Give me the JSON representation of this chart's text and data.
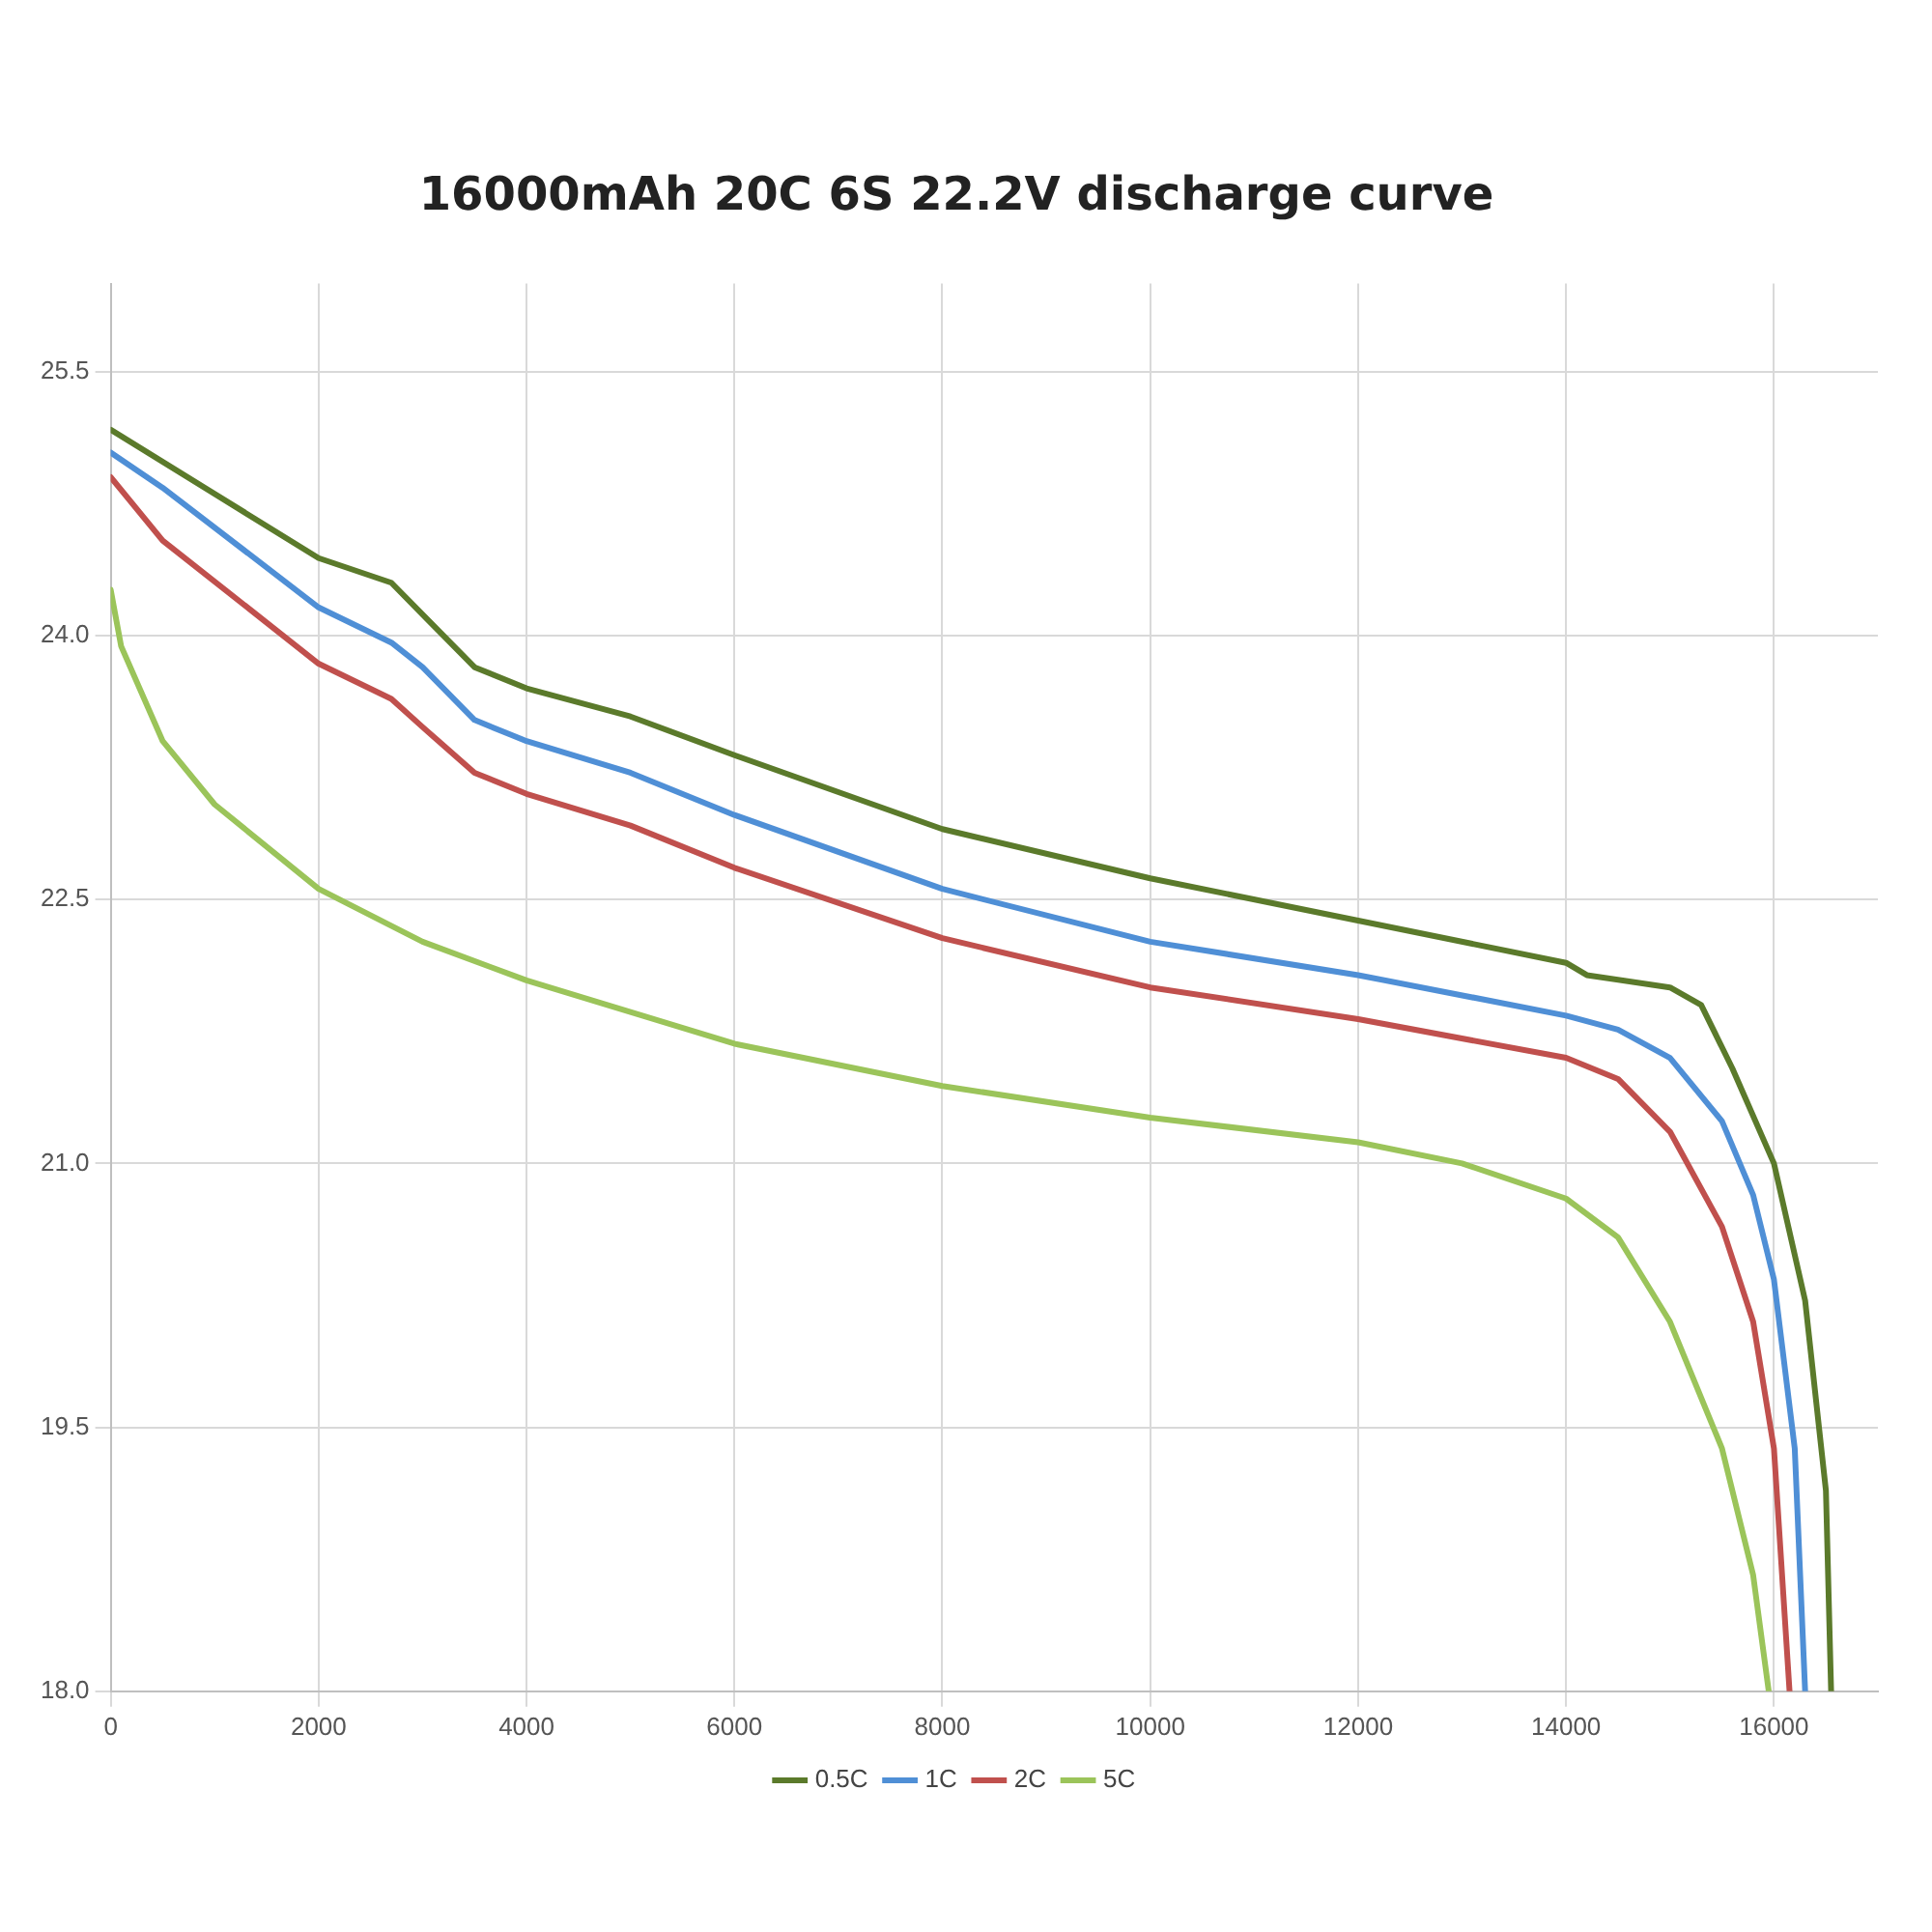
{
  "chart_data": {
    "type": "line",
    "title": "16000mAh 20C 6S 22.2V discharge curve",
    "xlim": [
      0,
      17000
    ],
    "xticks": [
      0,
      2000,
      4000,
      6000,
      8000,
      10000,
      12000,
      14000,
      16000
    ],
    "ylim": [
      18,
      26
    ],
    "yticks": [
      {
        "value": 18,
        "label": "18.0"
      },
      {
        "value": 19.5,
        "label": "19.5"
      },
      {
        "value": 21,
        "label": "21.0"
      },
      {
        "value": 22.5,
        "label": "22.5"
      },
      {
        "value": 24,
        "label": "24.0"
      },
      {
        "value": 25.5,
        "label": "25.5"
      }
    ],
    "grid": true,
    "legend": "bottom",
    "marker": "none",
    "line_style": "solid",
    "series": [
      {
        "name": "0.5C",
        "color": "#5b7a2b",
        "x": [
          0,
          2000,
          2700,
          3000,
          3500,
          4000,
          5000,
          6000,
          8000,
          10000,
          12000,
          14000,
          14200,
          15000,
          15300,
          15600,
          16000,
          16300,
          16500,
          16550
        ],
        "values": [
          25.17,
          24.44,
          24.3,
          24.12,
          23.82,
          23.7,
          23.54,
          23.32,
          22.9,
          22.62,
          22.38,
          22.14,
          22.07,
          22.0,
          21.9,
          21.54,
          21.0,
          20.22,
          19.14,
          18.0
        ]
      },
      {
        "name": "1C",
        "color": "#4f8fd6",
        "x": [
          0,
          500,
          2000,
          2700,
          3000,
          3500,
          4000,
          5000,
          6000,
          8000,
          10000,
          12000,
          14000,
          14500,
          15000,
          15500,
          15800,
          16000,
          16200,
          16300
        ],
        "values": [
          25.04,
          24.84,
          24.16,
          23.96,
          23.82,
          23.52,
          23.4,
          23.22,
          22.98,
          22.56,
          22.26,
          22.07,
          21.84,
          21.76,
          21.6,
          21.24,
          20.82,
          20.34,
          19.38,
          18.0
        ]
      },
      {
        "name": "2C",
        "color": "#c0504d",
        "x": [
          0,
          500,
          2000,
          2700,
          3000,
          3500,
          4000,
          5000,
          6000,
          8000,
          10000,
          12000,
          14000,
          14500,
          15000,
          15500,
          15800,
          16000,
          16150
        ],
        "values": [
          24.9,
          24.54,
          23.84,
          23.64,
          23.48,
          23.22,
          23.1,
          22.92,
          22.68,
          22.28,
          22.0,
          21.82,
          21.6,
          21.48,
          21.18,
          20.64,
          20.1,
          19.38,
          18.0
        ]
      },
      {
        "name": "5C",
        "color": "#9bc45a",
        "x": [
          0,
          100,
          500,
          1000,
          2000,
          3000,
          4000,
          6000,
          8000,
          10000,
          12000,
          13000,
          14000,
          14500,
          15000,
          15500,
          15800,
          15950
        ],
        "values": [
          24.26,
          23.94,
          23.4,
          23.04,
          22.56,
          22.26,
          22.04,
          21.68,
          21.44,
          21.26,
          21.12,
          21.0,
          20.8,
          20.58,
          20.1,
          19.38,
          18.66,
          18.0
        ]
      }
    ]
  }
}
